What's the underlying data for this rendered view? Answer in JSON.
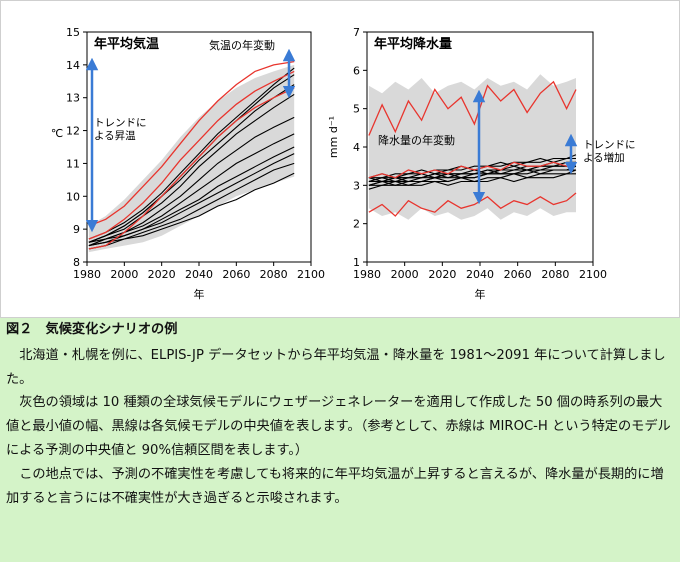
{
  "figure": {
    "label": "図２　気候変化シナリオの例"
  },
  "caption": {
    "p1": "北海道・札幌を例に、ELPIS-JP データセットから年平均気温・降水量を 1981～2091 年について計算しました。",
    "p2": "灰色の領域は 10 種類の全球気候モデルにウェザージェネレーターを適用して作成した 50 個の時系列の最大値と最小値の幅、黒線は各気候モデルの中央値を表します。（参考として、赤線は MIROC-H という特定のモデルによる予測の中央値と 90%信頼区間を表します。）",
    "p3": "この地点では、予測の不確実性を考慮しても将来的に年平均気温が上昇すると言えるが、降水量が長期的に増加すると言うには不確実性が大き過ぎると示唆されます。"
  },
  "chart_data": [
    {
      "type": "line",
      "title": "年平均気温",
      "xlabel": "年",
      "ylabel": "℃",
      "xlim": [
        1980,
        2100
      ],
      "ylim": [
        8,
        15
      ],
      "xticks": [
        1980,
        2000,
        2020,
        2040,
        2060,
        2080,
        2100
      ],
      "yticks": [
        8,
        9,
        10,
        11,
        12,
        13,
        14,
        15
      ],
      "annotations": [
        "トレンドに よる昇温",
        "気温の年変動"
      ],
      "colors": {
        "band": "#d9d9d9",
        "models": "#000000",
        "miroc": "#e8352e",
        "arrow": "#3a7bd5"
      },
      "x": [
        1981,
        1990,
        2000,
        2010,
        2020,
        2030,
        2040,
        2050,
        2060,
        2070,
        2080,
        2091
      ],
      "band_upper": [
        9.1,
        9.4,
        9.9,
        10.5,
        11.1,
        11.8,
        12.4,
        12.9,
        13.3,
        13.6,
        13.8,
        14.0
      ],
      "band_lower": [
        8.3,
        8.4,
        8.5,
        8.6,
        8.8,
        9.1,
        9.4,
        9.7,
        10.0,
        10.2,
        10.4,
        10.6
      ],
      "series": [
        {
          "values": [
            8.7,
            8.9,
            9.2,
            9.6,
            10.1,
            10.7,
            11.3,
            11.9,
            12.4,
            12.9,
            13.4,
            13.9
          ]
        },
        {
          "values": [
            8.6,
            8.8,
            9.1,
            9.5,
            10.0,
            10.5,
            11.1,
            11.6,
            12.1,
            12.6,
            13.0,
            13.4
          ]
        },
        {
          "values": [
            8.6,
            8.8,
            9.0,
            9.4,
            9.8,
            10.3,
            10.9,
            11.4,
            11.9,
            12.3,
            12.7,
            13.1
          ]
        },
        {
          "values": [
            8.6,
            8.7,
            8.9,
            9.2,
            9.6,
            10.0,
            10.5,
            11.0,
            11.4,
            11.8,
            12.1,
            12.4
          ]
        },
        {
          "values": [
            8.5,
            8.7,
            8.9,
            9.1,
            9.4,
            9.8,
            10.2,
            10.6,
            11.0,
            11.3,
            11.6,
            11.9
          ]
        },
        {
          "values": [
            8.5,
            8.7,
            8.8,
            9.0,
            9.3,
            9.6,
            9.9,
            10.3,
            10.6,
            10.9,
            11.2,
            11.5
          ]
        },
        {
          "values": [
            8.5,
            8.6,
            8.8,
            9.0,
            9.2,
            9.5,
            9.8,
            10.1,
            10.4,
            10.7,
            11.0,
            11.3
          ]
        },
        {
          "values": [
            8.5,
            8.6,
            8.7,
            8.9,
            9.1,
            9.3,
            9.6,
            9.9,
            10.2,
            10.5,
            10.8,
            11.0
          ]
        },
        {
          "values": [
            8.4,
            8.5,
            8.7,
            8.8,
            9.0,
            9.2,
            9.4,
            9.7,
            9.9,
            10.2,
            10.4,
            10.7
          ]
        },
        {
          "values": [
            8.6,
            8.8,
            9.1,
            9.5,
            10.0,
            10.6,
            11.2,
            11.8,
            12.3,
            12.8,
            13.3,
            13.7
          ]
        }
      ],
      "miroc": {
        "upper": [
          9.1,
          9.3,
          9.7,
          10.3,
          10.9,
          11.6,
          12.3,
          12.9,
          13.4,
          13.8,
          14.0,
          14.1
        ],
        "median": [
          8.7,
          8.9,
          9.3,
          9.8,
          10.4,
          11.1,
          11.7,
          12.3,
          12.8,
          13.2,
          13.5,
          13.8
        ],
        "lower": [
          8.4,
          8.5,
          8.9,
          9.4,
          10.0,
          10.6,
          11.2,
          11.8,
          12.3,
          12.7,
          13.0,
          13.3
        ]
      }
    },
    {
      "type": "line",
      "title": "年平均降水量",
      "xlabel": "年",
      "ylabel": "mm d⁻¹",
      "xlim": [
        1980,
        2100
      ],
      "ylim": [
        1,
        7
      ],
      "xticks": [
        1980,
        2000,
        2020,
        2040,
        2060,
        2080,
        2100
      ],
      "yticks": [
        1,
        2,
        3,
        4,
        5,
        6,
        7
      ],
      "annotations": [
        "降水量の年変動",
        "トレンドに よる増加"
      ],
      "colors": {
        "band": "#d9d9d9",
        "models": "#000000",
        "miroc": "#e8352e",
        "arrow": "#3a7bd5"
      },
      "x": [
        1981,
        1988,
        1995,
        2002,
        2009,
        2016,
        2023,
        2030,
        2037,
        2044,
        2051,
        2058,
        2065,
        2072,
        2079,
        2086,
        2091
      ],
      "band_upper": [
        5.6,
        5.4,
        5.7,
        5.5,
        5.8,
        5.4,
        5.6,
        5.7,
        5.5,
        5.8,
        5.6,
        5.7,
        5.5,
        5.9,
        5.6,
        5.7,
        5.8
      ],
      "band_lower": [
        2.4,
        2.2,
        2.3,
        2.1,
        2.4,
        2.2,
        2.3,
        2.1,
        2.2,
        2.4,
        2.1,
        2.3,
        2.2,
        2.4,
        2.2,
        2.3,
        2.3
      ],
      "series": [
        {
          "values": [
            3.2,
            3.3,
            3.2,
            3.3,
            3.4,
            3.3,
            3.4,
            3.5,
            3.4,
            3.5,
            3.6,
            3.5,
            3.6,
            3.7,
            3.6,
            3.7,
            3.8
          ]
        },
        {
          "values": [
            3.1,
            3.2,
            3.1,
            3.2,
            3.2,
            3.3,
            3.2,
            3.3,
            3.3,
            3.4,
            3.4,
            3.5,
            3.4,
            3.5,
            3.6,
            3.5,
            3.6
          ]
        },
        {
          "values": [
            3.0,
            3.1,
            3.0,
            3.1,
            3.1,
            3.2,
            3.1,
            3.2,
            3.2,
            3.3,
            3.3,
            3.3,
            3.4,
            3.3,
            3.4,
            3.4,
            3.5
          ]
        },
        {
          "values": [
            3.2,
            3.1,
            3.2,
            3.2,
            3.3,
            3.2,
            3.3,
            3.3,
            3.4,
            3.3,
            3.4,
            3.4,
            3.5,
            3.5,
            3.5,
            3.6,
            3.6
          ]
        },
        {
          "values": [
            3.0,
            3.0,
            3.1,
            3.0,
            3.1,
            3.1,
            3.1,
            3.2,
            3.1,
            3.2,
            3.2,
            3.3,
            3.2,
            3.3,
            3.3,
            3.3,
            3.4
          ]
        },
        {
          "values": [
            3.1,
            3.2,
            3.2,
            3.1,
            3.2,
            3.3,
            3.3,
            3.2,
            3.3,
            3.4,
            3.3,
            3.4,
            3.4,
            3.4,
            3.5,
            3.5,
            3.5
          ]
        },
        {
          "values": [
            2.9,
            3.0,
            3.0,
            3.0,
            3.0,
            3.1,
            3.0,
            3.1,
            3.1,
            3.1,
            3.2,
            3.1,
            3.2,
            3.2,
            3.2,
            3.3,
            3.3
          ]
        },
        {
          "values": [
            3.1,
            3.1,
            3.2,
            3.2,
            3.2,
            3.2,
            3.3,
            3.3,
            3.3,
            3.3,
            3.4,
            3.4,
            3.4,
            3.5,
            3.5,
            3.5,
            3.6
          ]
        },
        {
          "values": [
            3.0,
            3.1,
            3.1,
            3.1,
            3.1,
            3.2,
            3.2,
            3.2,
            3.2,
            3.3,
            3.3,
            3.3,
            3.3,
            3.4,
            3.4,
            3.4,
            3.4
          ]
        },
        {
          "values": [
            3.2,
            3.2,
            3.3,
            3.3,
            3.3,
            3.4,
            3.4,
            3.4,
            3.5,
            3.5,
            3.5,
            3.6,
            3.6,
            3.6,
            3.7,
            3.7,
            3.7
          ]
        }
      ],
      "miroc": {
        "upper": [
          4.3,
          5.1,
          4.4,
          5.2,
          4.7,
          5.5,
          5.0,
          5.3,
          4.6,
          5.6,
          5.2,
          5.5,
          4.9,
          5.4,
          5.7,
          5.0,
          5.5
        ],
        "median": [
          3.2,
          3.3,
          3.2,
          3.4,
          3.3,
          3.4,
          3.3,
          3.5,
          3.4,
          3.5,
          3.4,
          3.6,
          3.5,
          3.5,
          3.6,
          3.5,
          3.6
        ],
        "lower": [
          2.3,
          2.5,
          2.2,
          2.6,
          2.4,
          2.3,
          2.6,
          2.4,
          2.5,
          2.7,
          2.4,
          2.6,
          2.5,
          2.7,
          2.5,
          2.6,
          2.8
        ]
      }
    }
  ]
}
